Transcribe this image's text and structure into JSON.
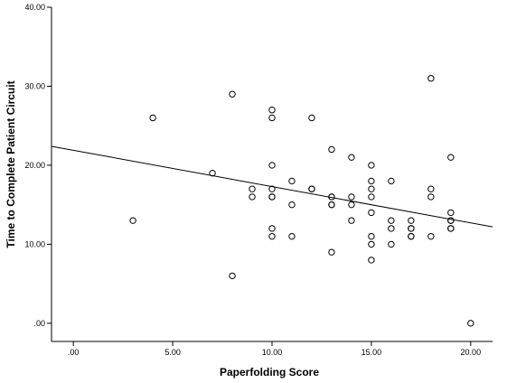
{
  "chart_data": {
    "type": "scatter",
    "title": "",
    "xlabel": "Paperfolding Score",
    "ylabel": "Time to Complete Patient Circuit",
    "xlim": [
      -1.1,
      21.1
    ],
    "ylim": [
      -2.3,
      40
    ],
    "xticks": [
      ".00",
      "5.00",
      "10.00",
      "15.00",
      "20.00"
    ],
    "yticks": [
      ".00",
      "10.00",
      "20.00",
      "30.00",
      "40.00"
    ],
    "xtick_values": [
      0,
      5,
      10,
      15,
      20
    ],
    "ytick_values": [
      0,
      10,
      20,
      30,
      40
    ],
    "grid": false,
    "marker": "open-circle",
    "colors": {
      "marker": "#000000",
      "line": "#000000",
      "background": "#ffffff"
    },
    "fit_line": {
      "type": "linear",
      "x": [
        -1.1,
        21.1
      ],
      "y": [
        22.4,
        12.2
      ]
    },
    "points": [
      [
        3,
        13
      ],
      [
        4,
        26
      ],
      [
        7,
        19
      ],
      [
        8,
        29
      ],
      [
        8,
        6
      ],
      [
        9,
        17
      ],
      [
        9,
        16
      ],
      [
        10,
        27
      ],
      [
        10,
        26
      ],
      [
        10,
        20
      ],
      [
        10,
        17
      ],
      [
        10,
        16
      ],
      [
        10,
        16
      ],
      [
        10,
        12
      ],
      [
        10,
        11
      ],
      [
        11,
        18
      ],
      [
        11,
        15
      ],
      [
        11,
        11
      ],
      [
        12,
        26
      ],
      [
        12,
        17
      ],
      [
        12,
        17
      ],
      [
        13,
        22
      ],
      [
        13,
        16
      ],
      [
        13,
        16
      ],
      [
        13,
        15
      ],
      [
        13,
        15
      ],
      [
        13,
        9
      ],
      [
        14,
        21
      ],
      [
        14,
        16
      ],
      [
        14,
        15
      ],
      [
        14,
        13
      ],
      [
        15,
        20
      ],
      [
        15,
        18
      ],
      [
        15,
        17
      ],
      [
        15,
        16
      ],
      [
        15,
        14
      ],
      [
        15,
        11
      ],
      [
        15,
        10
      ],
      [
        15,
        8
      ],
      [
        16,
        18
      ],
      [
        16,
        13
      ],
      [
        16,
        12
      ],
      [
        16,
        10
      ],
      [
        17,
        13
      ],
      [
        17,
        12
      ],
      [
        17,
        12
      ],
      [
        17,
        11
      ],
      [
        17,
        11
      ],
      [
        18,
        31
      ],
      [
        18,
        17
      ],
      [
        18,
        16
      ],
      [
        18,
        11
      ],
      [
        19,
        21
      ],
      [
        19,
        14
      ],
      [
        19,
        13
      ],
      [
        19,
        13
      ],
      [
        19,
        12
      ],
      [
        19,
        12
      ],
      [
        20,
        0
      ]
    ]
  }
}
